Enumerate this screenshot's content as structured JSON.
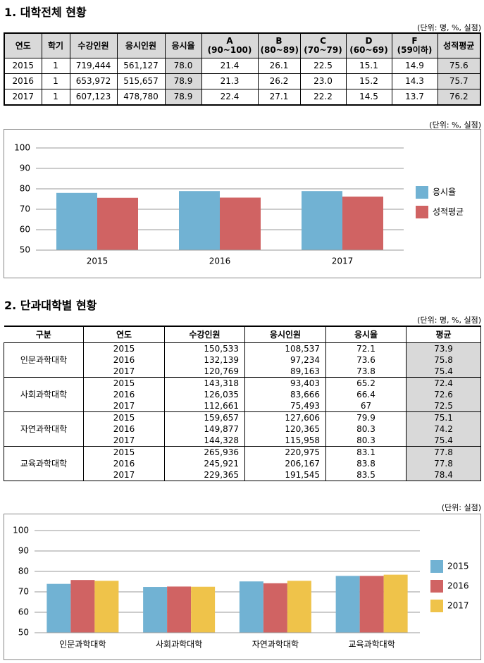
{
  "section1": {
    "title": "1. 대학전체 현황",
    "unit": "(단위: 명, %, 실점)",
    "table": {
      "header": [
        "연도",
        "학기",
        "수강인원",
        "응시인원",
        "응시율",
        "A\n(90~100)",
        "B\n(80~89)",
        "C\n(70~79)",
        "D\n(60~69)",
        "F\n(59이하)",
        "성적평균"
      ],
      "rows": [
        [
          "2015",
          "1",
          "719,444",
          "561,127",
          "78.0",
          "21.4",
          "26.1",
          "22.5",
          "15.1",
          "14.9",
          "75.6"
        ],
        [
          "2016",
          "1",
          "653,972",
          "515,657",
          "78.9",
          "21.3",
          "26.2",
          "23.0",
          "15.2",
          "14.3",
          "75.7"
        ],
        [
          "2017",
          "1",
          "607,123",
          "478,780",
          "78.9",
          "22.4",
          "27.1",
          "22.2",
          "14.5",
          "13.7",
          "76.2"
        ]
      ]
    }
  },
  "chart1": {
    "type": "bar",
    "unit": "(단위: %, 실점)",
    "categories": [
      "2015",
      "2016",
      "2017"
    ],
    "series": [
      {
        "name": "응시율",
        "color": "#71b2d3",
        "values": [
          78.0,
          78.9,
          78.9
        ]
      },
      {
        "name": "성적평균",
        "color": "#d06363",
        "values": [
          75.6,
          75.7,
          76.2
        ]
      }
    ],
    "ylim": [
      50,
      100
    ],
    "yticks": [
      50,
      60,
      70,
      80,
      90,
      100
    ],
    "grid": true
  },
  "section2": {
    "title": "2. 단과대학별 현황",
    "unit": "(단위: 명, %, 실점)",
    "table": {
      "header": [
        "구분",
        "연도",
        "수강인원",
        "응시인원",
        "응시율",
        "평균"
      ],
      "groups": [
        {
          "name": "인문과학대학",
          "rows": [
            [
              "2015",
              "150,533",
              "108,537",
              "72.1",
              "73.9"
            ],
            [
              "2016",
              "132,139",
              "97,234",
              "73.6",
              "75.8"
            ],
            [
              "2017",
              "120,769",
              "89,163",
              "73.8",
              "75.4"
            ]
          ]
        },
        {
          "name": "사회과학대학",
          "rows": [
            [
              "2015",
              "143,318",
              "93,403",
              "65.2",
              "72.4"
            ],
            [
              "2016",
              "126,035",
              "83,666",
              "66.4",
              "72.6"
            ],
            [
              "2017",
              "112,661",
              "75,493",
              "67",
              "72.5"
            ]
          ]
        },
        {
          "name": "자연과학대학",
          "rows": [
            [
              "2015",
              "159,657",
              "127,606",
              "79.9",
              "75.1"
            ],
            [
              "2016",
              "149,877",
              "120,365",
              "80.3",
              "74.2"
            ],
            [
              "2017",
              "144,328",
              "115,958",
              "80.3",
              "75.4"
            ]
          ]
        },
        {
          "name": "교육과학대학",
          "rows": [
            [
              "2015",
              "265,936",
              "220,975",
              "83.1",
              "77.8"
            ],
            [
              "2016",
              "245,921",
              "206,167",
              "83.8",
              "77.8"
            ],
            [
              "2017",
              "229,365",
              "191,545",
              "83.5",
              "78.4"
            ]
          ]
        }
      ]
    }
  },
  "chart2": {
    "type": "bar",
    "unit": "(단위: 실점)",
    "categories": [
      "인문과학대학",
      "사회과학대학",
      "자연과학대학",
      "교육과학대학"
    ],
    "series": [
      {
        "name": "2015",
        "color": "#71b2d3",
        "values": [
          73.9,
          72.4,
          75.1,
          77.8
        ]
      },
      {
        "name": "2016",
        "color": "#d06363",
        "values": [
          75.8,
          72.6,
          74.2,
          77.8
        ]
      },
      {
        "name": "2017",
        "color": "#efc34a",
        "values": [
          75.4,
          72.5,
          75.4,
          78.4
        ]
      }
    ],
    "ylim": [
      50,
      100
    ],
    "yticks": [
      50,
      60,
      70,
      80,
      90,
      100
    ],
    "grid": true
  }
}
